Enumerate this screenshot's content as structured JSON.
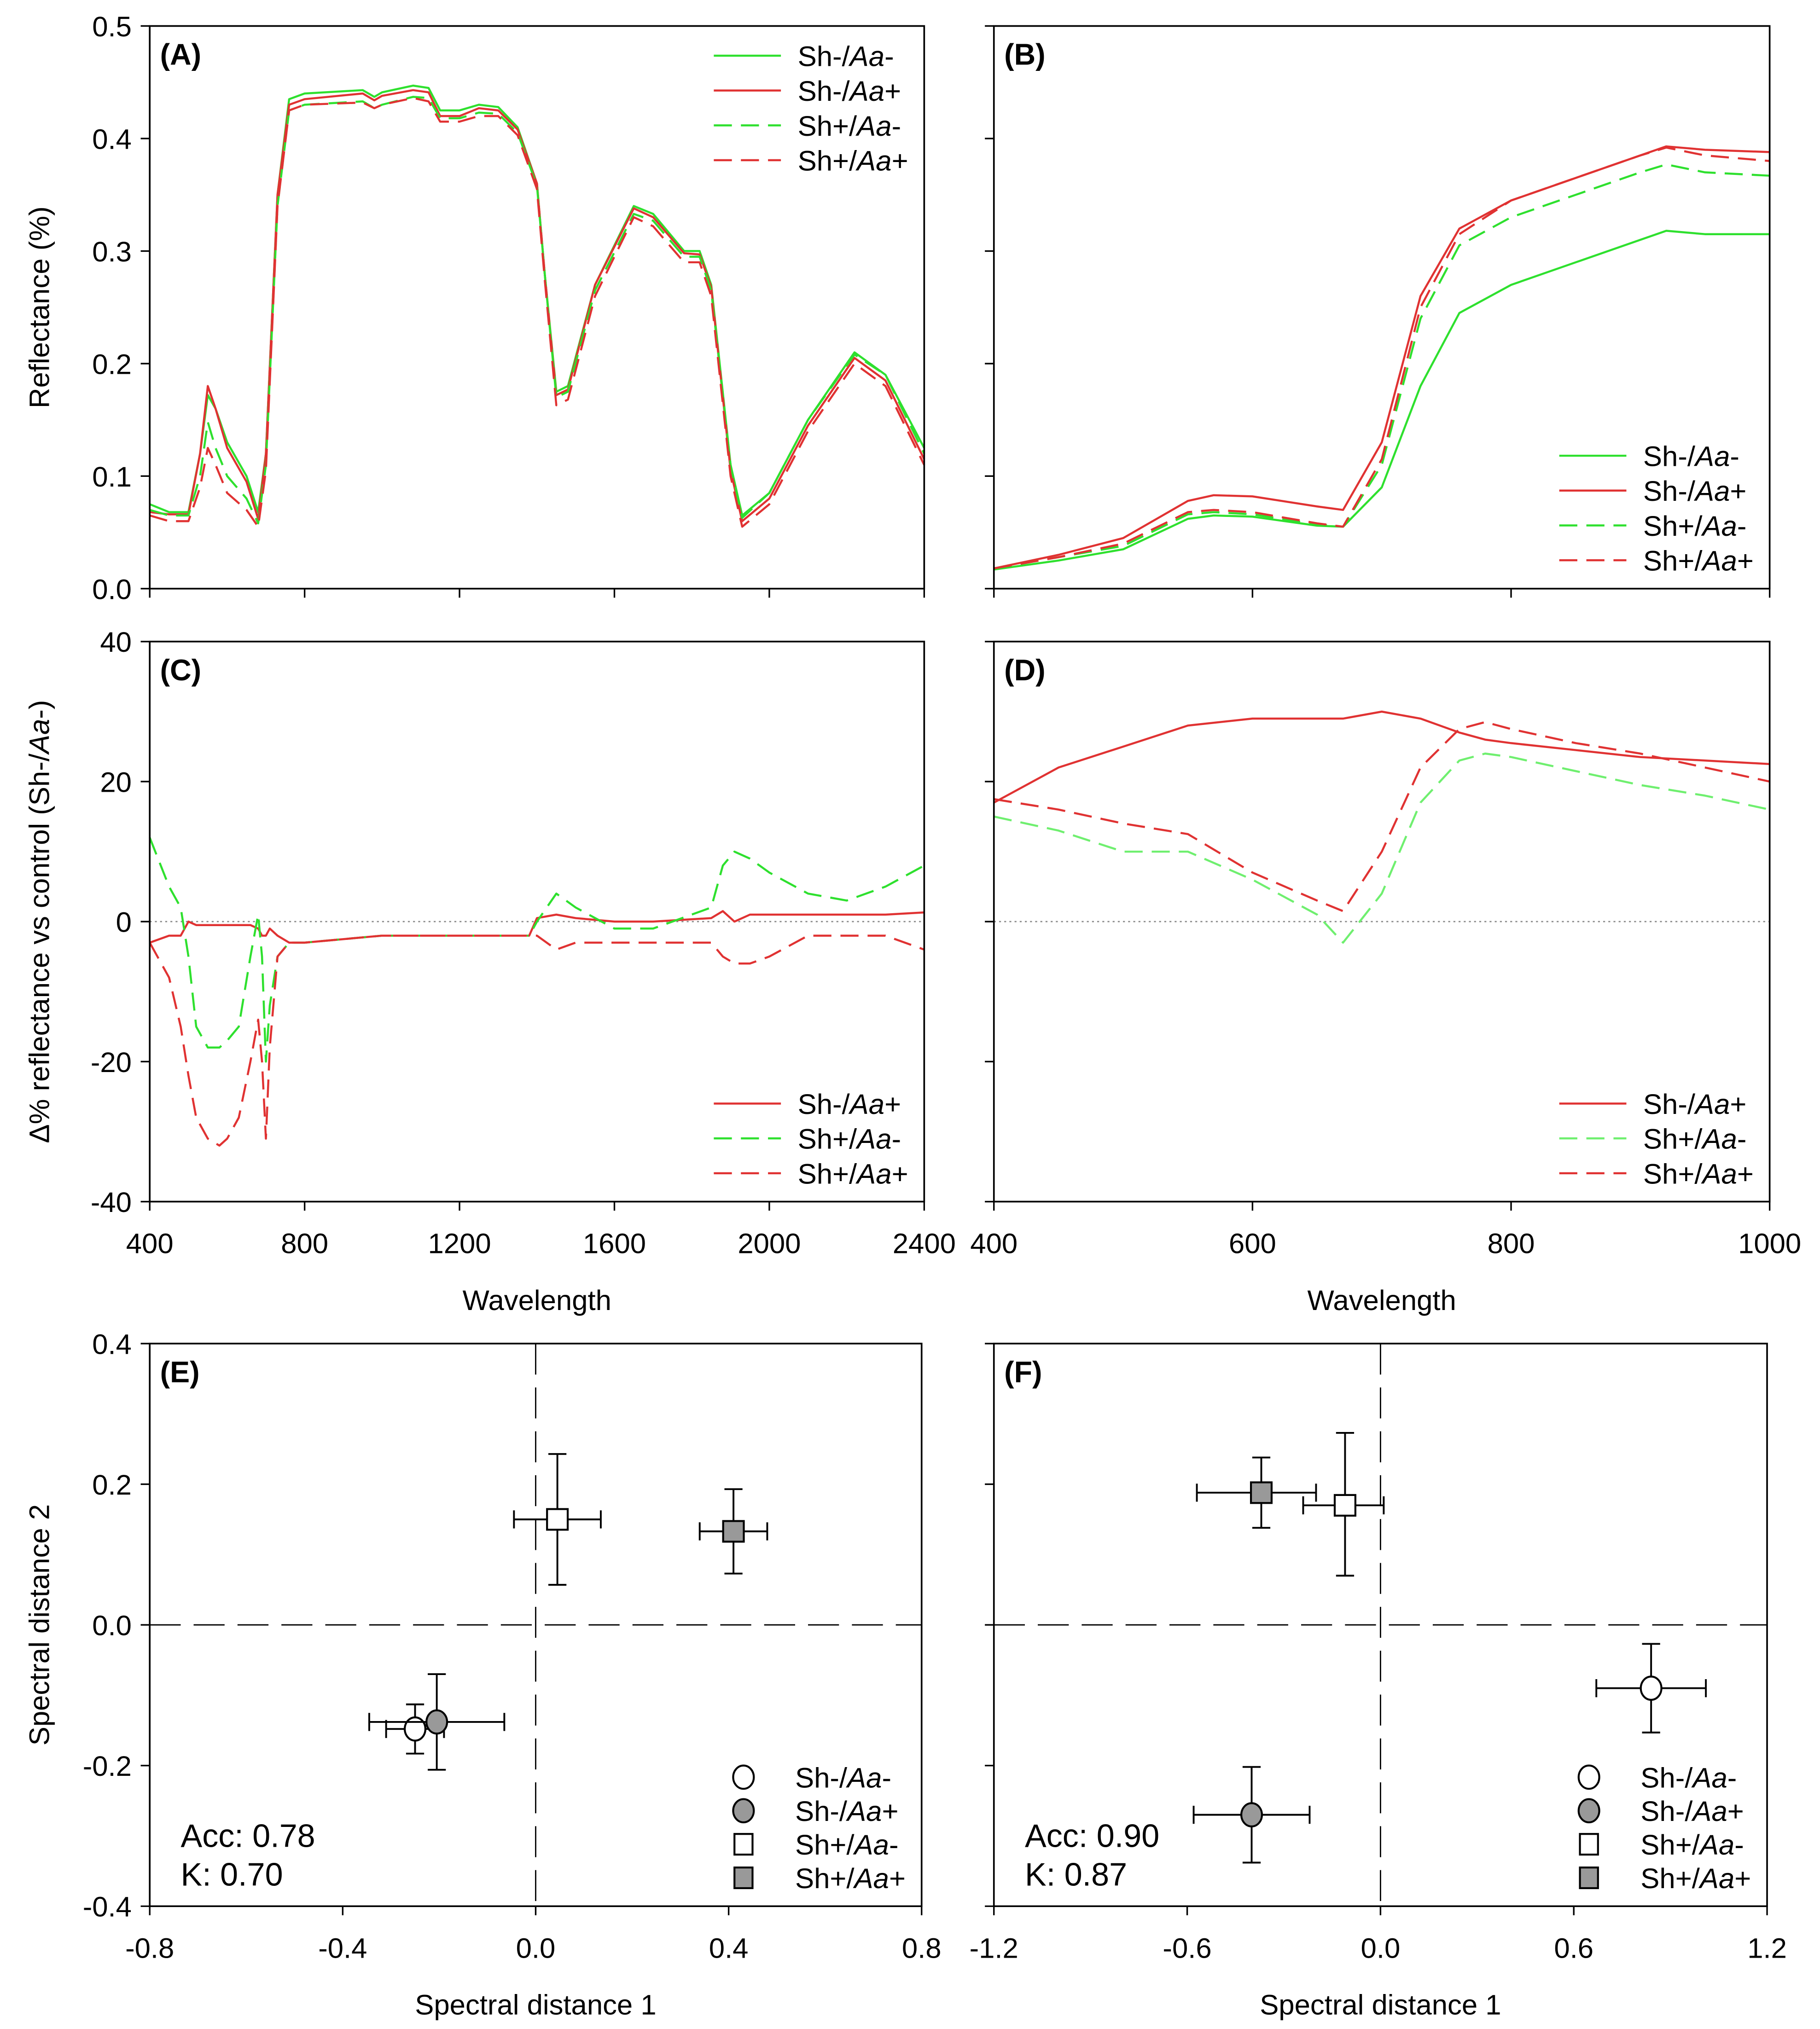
{
  "colors": {
    "green": "#2ee02e",
    "green_light": "#6fef6f",
    "red": "#e03232",
    "gray_fill": "#999999"
  },
  "chart_data": [
    {
      "id": "A",
      "type": "line",
      "panel_label": "(A)",
      "xlim": [
        400,
        2400
      ],
      "ylim": [
        0,
        0.5
      ],
      "xticks": [
        400,
        800,
        1200,
        1600,
        2000,
        2400
      ],
      "show_xticklabels": false,
      "yticks": [
        0,
        0.1,
        0.2,
        0.3,
        0.4,
        0.5
      ],
      "yticklabels": [
        "0.0",
        "0.1",
        "0.2",
        "0.3",
        "0.4",
        "0.5"
      ],
      "ylabel": "Reflectance (%)",
      "xlabel": "",
      "legend": "top-right",
      "x": [
        400,
        450,
        500,
        530,
        550,
        570,
        600,
        650,
        680,
        700,
        730,
        760,
        800,
        950,
        980,
        1000,
        1080,
        1120,
        1150,
        1200,
        1250,
        1300,
        1350,
        1400,
        1420,
        1450,
        1480,
        1550,
        1650,
        1700,
        1780,
        1820,
        1850,
        1900,
        1930,
        2000,
        2100,
        2220,
        2300,
        2400
      ],
      "series": [
        {
          "name": "Sh-/Aa-",
          "color": "green",
          "dash": false,
          "values": [
            0.075,
            0.068,
            0.068,
            0.12,
            0.172,
            0.16,
            0.13,
            0.1,
            0.068,
            0.12,
            0.35,
            0.435,
            0.44,
            0.443,
            0.437,
            0.441,
            0.447,
            0.445,
            0.425,
            0.425,
            0.43,
            0.428,
            0.41,
            0.36,
            0.28,
            0.175,
            0.18,
            0.27,
            0.34,
            0.333,
            0.3,
            0.3,
            0.27,
            0.11,
            0.065,
            0.085,
            0.15,
            0.21,
            0.19,
            0.125
          ]
        },
        {
          "name": "Sh-/Aa+",
          "color": "red",
          "dash": false,
          "values": [
            0.068,
            0.066,
            0.066,
            0.12,
            0.18,
            0.16,
            0.125,
            0.095,
            0.062,
            0.12,
            0.35,
            0.43,
            0.435,
            0.44,
            0.434,
            0.438,
            0.443,
            0.441,
            0.42,
            0.42,
            0.427,
            0.425,
            0.408,
            0.36,
            0.28,
            0.172,
            0.177,
            0.27,
            0.338,
            0.33,
            0.298,
            0.297,
            0.268,
            0.105,
            0.06,
            0.08,
            0.145,
            0.205,
            0.185,
            0.115
          ]
        },
        {
          "name": "Sh+/Aa-",
          "color": "green",
          "dash": true,
          "values": [
            0.07,
            0.065,
            0.065,
            0.1,
            0.148,
            0.125,
            0.1,
            0.08,
            0.058,
            0.11,
            0.34,
            0.425,
            0.43,
            0.433,
            0.427,
            0.43,
            0.437,
            0.436,
            0.418,
            0.418,
            0.423,
            0.422,
            0.405,
            0.358,
            0.28,
            0.17,
            0.175,
            0.265,
            0.333,
            0.327,
            0.295,
            0.295,
            0.265,
            0.11,
            0.063,
            0.085,
            0.15,
            0.208,
            0.19,
            0.12
          ]
        },
        {
          "name": "Sh+/Aa+",
          "color": "red",
          "dash": true,
          "values": [
            0.065,
            0.06,
            0.06,
            0.09,
            0.125,
            0.11,
            0.085,
            0.07,
            0.055,
            0.105,
            0.34,
            0.425,
            0.43,
            0.432,
            0.427,
            0.43,
            0.436,
            0.433,
            0.415,
            0.415,
            0.42,
            0.42,
            0.403,
            0.355,
            0.275,
            0.163,
            0.168,
            0.26,
            0.33,
            0.322,
            0.29,
            0.29,
            0.26,
            0.1,
            0.055,
            0.075,
            0.14,
            0.2,
            0.18,
            0.11
          ]
        }
      ]
    },
    {
      "id": "B",
      "type": "line",
      "panel_label": "(B)",
      "xlim": [
        400,
        1000
      ],
      "ylim": [
        0,
        0.5
      ],
      "xticks": [
        400,
        600,
        800,
        1000
      ],
      "show_xticklabels": false,
      "yticks": [
        0,
        0.1,
        0.2,
        0.3,
        0.4,
        0.5
      ],
      "yticklabels": [],
      "ylabel": "",
      "xlabel": "",
      "legend": "bottom-right",
      "x": [
        400,
        450,
        500,
        550,
        570,
        600,
        650,
        670,
        700,
        730,
        760,
        800,
        850,
        900,
        920,
        950,
        1000
      ],
      "series": [
        {
          "name": "Sh-/Aa-",
          "color": "green",
          "dash": false,
          "values": [
            0.017,
            0.025,
            0.035,
            0.062,
            0.065,
            0.064,
            0.056,
            0.055,
            0.09,
            0.18,
            0.245,
            0.27,
            0.29,
            0.31,
            0.318,
            0.315,
            0.315
          ]
        },
        {
          "name": "Sh-/Aa+",
          "color": "red",
          "dash": false,
          "values": [
            0.018,
            0.03,
            0.045,
            0.078,
            0.083,
            0.082,
            0.073,
            0.07,
            0.13,
            0.26,
            0.32,
            0.345,
            0.365,
            0.385,
            0.393,
            0.39,
            0.388
          ]
        },
        {
          "name": "Sh+/Aa-",
          "color": "green",
          "dash": true,
          "values": [
            0.018,
            0.028,
            0.038,
            0.066,
            0.068,
            0.066,
            0.057,
            0.055,
            0.11,
            0.24,
            0.305,
            0.33,
            0.35,
            0.37,
            0.377,
            0.37,
            0.367
          ]
        },
        {
          "name": "Sh+/Aa+",
          "color": "red",
          "dash": true,
          "values": [
            0.018,
            0.028,
            0.04,
            0.068,
            0.07,
            0.068,
            0.058,
            0.055,
            0.115,
            0.25,
            0.315,
            0.345,
            0.365,
            0.385,
            0.392,
            0.385,
            0.38
          ]
        }
      ]
    },
    {
      "id": "C",
      "type": "line",
      "panel_label": "(C)",
      "xlim": [
        400,
        2400
      ],
      "ylim": [
        -40,
        40
      ],
      "xticks": [
        400,
        800,
        1200,
        1600,
        2000,
        2400
      ],
      "xticklabels": [
        "400",
        "800",
        "1200",
        "1600",
        "2000",
        "2400"
      ],
      "show_xticklabels": true,
      "yticks": [
        -40,
        -20,
        0,
        20,
        40
      ],
      "yticklabels": [
        "-40",
        "-20",
        "0",
        "20",
        "40"
      ],
      "ylabel": "Δ% reflectance vs control (Sh-/Aa-)",
      "xlabel": "Wavelength",
      "zero_line": "dotted",
      "legend": "bottom-right",
      "x": [
        400,
        450,
        480,
        500,
        520,
        550,
        580,
        600,
        630,
        660,
        680,
        690,
        700,
        710,
        730,
        760,
        800,
        1000,
        1200,
        1380,
        1400,
        1450,
        1500,
        1600,
        1700,
        1850,
        1880,
        1910,
        1950,
        2000,
        2100,
        2200,
        2300,
        2400
      ],
      "series": [
        {
          "name": "Sh-/Aa+",
          "color": "red",
          "dash": false,
          "values": [
            -3,
            -2,
            -2,
            0,
            -0.5,
            -0.5,
            -0.5,
            -0.5,
            -0.5,
            -0.5,
            -1,
            -2,
            -2,
            -1,
            -2,
            -3,
            -3,
            -2,
            -2,
            -2,
            0.5,
            1,
            0.5,
            0,
            0,
            0.5,
            1.5,
            0,
            1,
            1,
            1,
            1,
            1,
            1.3
          ]
        },
        {
          "name": "Sh+/Aa-",
          "color": "green",
          "dash": true,
          "values": [
            12,
            5,
            2,
            -5,
            -15,
            -18,
            -18,
            -17,
            -15,
            -5,
            1,
            -5,
            -20,
            -12,
            -5,
            -3,
            -3,
            -2,
            -2,
            -2,
            0,
            4,
            2,
            -1,
            -1,
            2,
            8,
            10,
            9,
            7,
            4,
            3,
            5,
            8
          ]
        },
        {
          "name": "Sh+/Aa+",
          "color": "red",
          "dash": true,
          "values": [
            -3,
            -8,
            -15,
            -22,
            -28,
            -31,
            -32,
            -31,
            -28,
            -20,
            -14,
            -20,
            -31,
            -18,
            -5,
            -3,
            -3,
            -2,
            -2,
            -2,
            -2,
            -4,
            -3,
            -3,
            -3,
            -3,
            -5,
            -6,
            -6,
            -5,
            -2,
            -2,
            -2,
            -4
          ]
        }
      ]
    },
    {
      "id": "D",
      "type": "line",
      "panel_label": "(D)",
      "xlim": [
        400,
        1000
      ],
      "ylim": [
        -40,
        40
      ],
      "xticks": [
        400,
        600,
        800,
        1000
      ],
      "xticklabels": [
        "400",
        "600",
        "800",
        "1000"
      ],
      "show_xticklabels": true,
      "yticks": [
        -40,
        -20,
        0,
        20,
        40
      ],
      "yticklabels": [],
      "ylabel": "",
      "xlabel": "Wavelength",
      "zero_line": "dotted",
      "legend": "bottom-right",
      "x": [
        400,
        450,
        500,
        550,
        600,
        650,
        670,
        700,
        730,
        760,
        780,
        800,
        850,
        900,
        950,
        1000
      ],
      "series": [
        {
          "name": "Sh-/Aa+",
          "color": "red",
          "dash": false,
          "values": [
            17,
            22,
            25,
            28,
            29,
            29,
            29,
            30,
            29,
            27,
            26,
            25.5,
            24.5,
            23.5,
            23,
            22.5
          ]
        },
        {
          "name": "Sh+/Aa-",
          "color": "green_light",
          "dash": true,
          "values": [
            15,
            13,
            10,
            10,
            6,
            1,
            -3,
            4,
            17,
            23,
            24,
            23.5,
            21.5,
            19.5,
            18,
            16
          ]
        },
        {
          "name": "Sh+/Aa+",
          "color": "red",
          "dash": true,
          "values": [
            17.5,
            16,
            14,
            12.5,
            7,
            3,
            1.5,
            10,
            22,
            27.5,
            28.5,
            27.5,
            25.5,
            24,
            22,
            20
          ]
        }
      ]
    },
    {
      "id": "E",
      "type": "scatter",
      "panel_label": "(E)",
      "xlim": [
        -0.8,
        0.8
      ],
      "ylim": [
        -0.4,
        0.4
      ],
      "xticks": [
        -0.8,
        -0.4,
        0,
        0.4,
        0.8
      ],
      "xticklabels": [
        "-0.8",
        "-0.4",
        "0.0",
        "0.4",
        "0.8"
      ],
      "show_xticklabels": true,
      "yticks": [
        -0.4,
        -0.2,
        0,
        0.2,
        0.4
      ],
      "yticklabels": [
        "-0.4",
        "-0.2",
        "0.0",
        "0.2",
        "0.4"
      ],
      "ylabel": "Spectral distance 2",
      "xlabel": "Spectral distance 1",
      "legend": "bottom-right",
      "annotations": [
        "Acc: 0.78",
        "K: 0.70"
      ],
      "points": [
        {
          "name": "Sh-/Aa-",
          "marker": "circle",
          "fill": "white",
          "x": -0.25,
          "y": -0.148,
          "xerr": [
            0.06,
            0.06
          ],
          "yerr": [
            0.035,
            0.035
          ]
        },
        {
          "name": "Sh-/Aa+",
          "marker": "circle",
          "fill": "gray",
          "x": -0.205,
          "y": -0.138,
          "xerr": [
            0.14,
            0.14
          ],
          "yerr": [
            0.068,
            0.068
          ]
        },
        {
          "name": "Sh+/Aa-",
          "marker": "square",
          "fill": "white",
          "x": 0.045,
          "y": 0.15,
          "xerr": [
            0.09,
            0.09
          ],
          "yerr": [
            0.093,
            0.093
          ]
        },
        {
          "name": "Sh+/Aa+",
          "marker": "square",
          "fill": "gray",
          "x": 0.41,
          "y": 0.133,
          "xerr": [
            0.07,
            0.07
          ],
          "yerr": [
            0.06,
            0.06
          ]
        }
      ]
    },
    {
      "id": "F",
      "type": "scatter",
      "panel_label": "(F)",
      "xlim": [
        -1.2,
        1.2
      ],
      "ylim": [
        -0.4,
        0.4
      ],
      "xticks": [
        -1.2,
        -0.6,
        0,
        0.6,
        1.2
      ],
      "xticklabels": [
        "-1.2",
        "-0.6",
        "0.0",
        "0.6",
        "1.2"
      ],
      "show_xticklabels": true,
      "yticks": [
        -0.4,
        -0.2,
        0,
        0.2,
        0.4
      ],
      "yticklabels": [],
      "ylabel": "",
      "xlabel": "Spectral distance 1",
      "legend": "bottom-right",
      "annotations": [
        "Acc: 0.90",
        "K: 0.87"
      ],
      "points": [
        {
          "name": "Sh-/Aa-",
          "marker": "circle",
          "fill": "white",
          "x": 0.84,
          "y": -0.09,
          "xerr": [
            0.17,
            0.17
          ],
          "yerr": [
            0.063,
            0.063
          ]
        },
        {
          "name": "Sh-/Aa+",
          "marker": "circle",
          "fill": "gray",
          "x": -0.4,
          "y": -0.27,
          "xerr": [
            0.18,
            0.18
          ],
          "yerr": [
            0.068,
            0.068
          ]
        },
        {
          "name": "Sh+/Aa-",
          "marker": "square",
          "fill": "white",
          "x": -0.11,
          "y": 0.17,
          "xerr": [
            0.13,
            0.12
          ],
          "yerr": [
            0.1,
            0.103
          ]
        },
        {
          "name": "Sh+/Aa+",
          "marker": "square",
          "fill": "gray",
          "x": -0.37,
          "y": 0.188,
          "xerr": [
            0.2,
            0.17
          ],
          "yerr": [
            0.05,
            0.05
          ]
        }
      ]
    }
  ]
}
